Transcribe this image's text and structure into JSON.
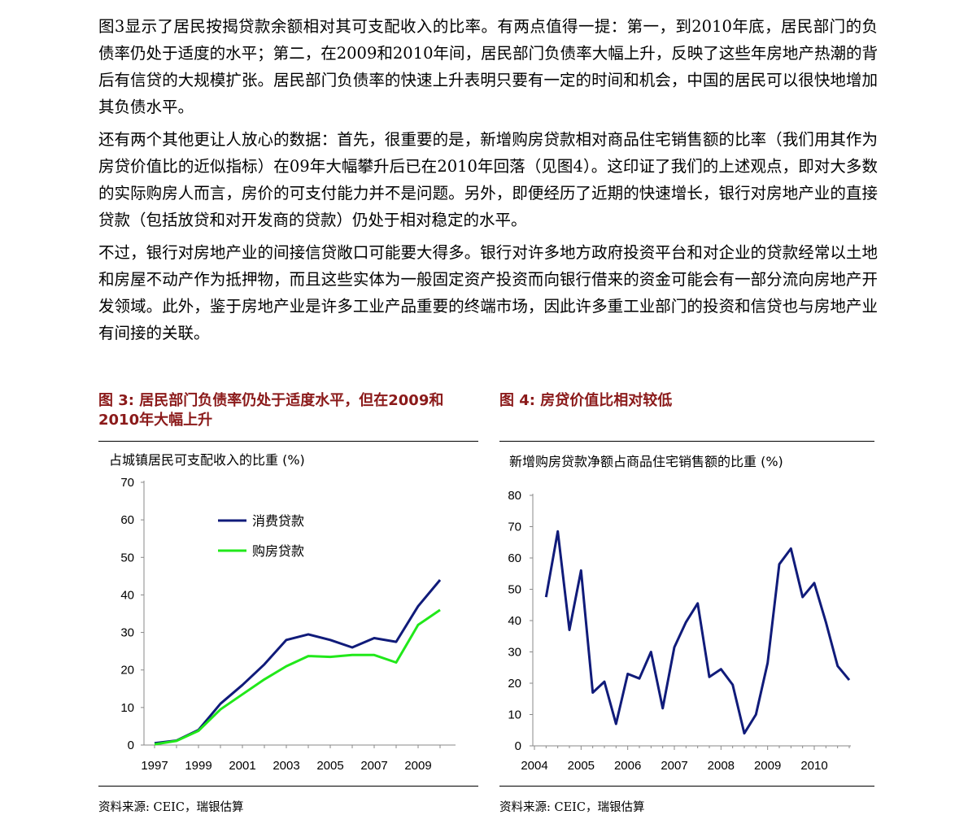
{
  "paragraphs": [
    "图3显示了居民按揭贷款余额相对其可支配收入的比率。有两点值得一提：第一，到2010年底，居民部门的负债率仍处于适度的水平；第二，在2009和2010年间，居民部门负债率大幅上升，反映了这些年房地产热潮的背后有信贷的大规模扩张。居民部门负债率的快速上升表明只要有一定的时间和机会，中国的居民可以很快地增加其负债水平。",
    "还有两个其他更让人放心的数据：首先，很重要的是，新增购房贷款相对商品住宅销售额的比率（我们用其作为房贷价值比的近似指标）在09年大幅攀升后已在2010年回落（见图4）。这印证了我们的上述观点，即对大多数的实际购房人而言，房价的可支付能力并不是问题。另外，即便经历了近期的快速增长，银行对房地产业的直接贷款（包括放贷和对开发商的贷款）仍处于相对稳定的水平。",
    "不过，银行对房地产业的间接信贷敞口可能要大得多。银行对许多地方政府投资平台和对企业的贷款经常以土地和房屋不动产作为抵押物，而且这些实体为一般固定资产投资而向银行借来的资金可能会有一部分流向房地产开发领域。此外，鉴于房地产业是许多工业产品重要的终端市场，因此许多重工业部门的投资和信贷也与房地产业有间接的关联。"
  ],
  "colors": {
    "title": "#8b1a1a",
    "consumer": "#101b7a",
    "mortgage": "#21e81a",
    "series4": "#101b7a"
  },
  "chart_data": [
    {
      "type": "line",
      "title": "图 3: 居民部门负债率仍处于适度水平，但在2009和2010年大幅上升",
      "ylabel": "占城镇居民可支配收入的比重 (%)",
      "xlabel": "",
      "x": [
        1997,
        1998,
        1999,
        2000,
        2001,
        2002,
        2003,
        2004,
        2005,
        2006,
        2007,
        2008,
        2009,
        2010
      ],
      "series": [
        {
          "name": "消费贷款",
          "values": [
            0.5,
            1.2,
            4.0,
            11.0,
            16.0,
            21.5,
            28.0,
            29.5,
            28.0,
            26.0,
            28.5,
            27.5,
            37.0,
            44.0
          ]
        },
        {
          "name": "购房贷款",
          "values": [
            0.2,
            1.1,
            3.8,
            9.5,
            13.5,
            17.5,
            21.0,
            23.7,
            23.5,
            24.0,
            24.0,
            22.0,
            32.0,
            36.0
          ]
        }
      ],
      "xticks": [
        "1997",
        "1999",
        "2001",
        "2003",
        "2005",
        "2007",
        "2009"
      ],
      "yticks": [
        0,
        10,
        20,
        30,
        40,
        50,
        60,
        70
      ],
      "ylim": [
        0,
        70
      ],
      "legend": "top-left",
      "source": "资料来源: CEIC，瑞银估算"
    },
    {
      "type": "line",
      "title": "图 4: 房贷价值比相对较低",
      "ylabel": "新增购房贷款净额占商品住宅销售额的比重 (%)",
      "xlabel": "",
      "x": [
        2004.25,
        2004.5,
        2004.75,
        2005.0,
        2005.25,
        2005.5,
        2005.75,
        2006.0,
        2006.25,
        2006.5,
        2006.75,
        2007.0,
        2007.25,
        2007.5,
        2007.75,
        2008.0,
        2008.25,
        2008.5,
        2008.75,
        2009.0,
        2009.25,
        2009.5,
        2009.75,
        2010.0,
        2010.25,
        2010.5,
        2010.75
      ],
      "series": [
        {
          "name": "比重",
          "values": [
            47.5,
            68.5,
            37.0,
            56.0,
            17.0,
            20.5,
            7.0,
            23.0,
            21.5,
            30.0,
            12.0,
            31.5,
            39.5,
            45.5,
            22.0,
            24.5,
            19.5,
            4.0,
            10.0,
            26.5,
            58.0,
            63.0,
            47.5,
            52.0,
            39.5,
            25.5,
            21.0
          ]
        }
      ],
      "xticks": [
        "2004",
        "2005",
        "2006",
        "2007",
        "2008",
        "2009",
        "2010"
      ],
      "yticks": [
        0,
        10,
        20,
        30,
        40,
        50,
        60,
        70,
        80
      ],
      "ylim": [
        0,
        80
      ],
      "source": "资料来源: CEIC，瑞银估算"
    }
  ]
}
